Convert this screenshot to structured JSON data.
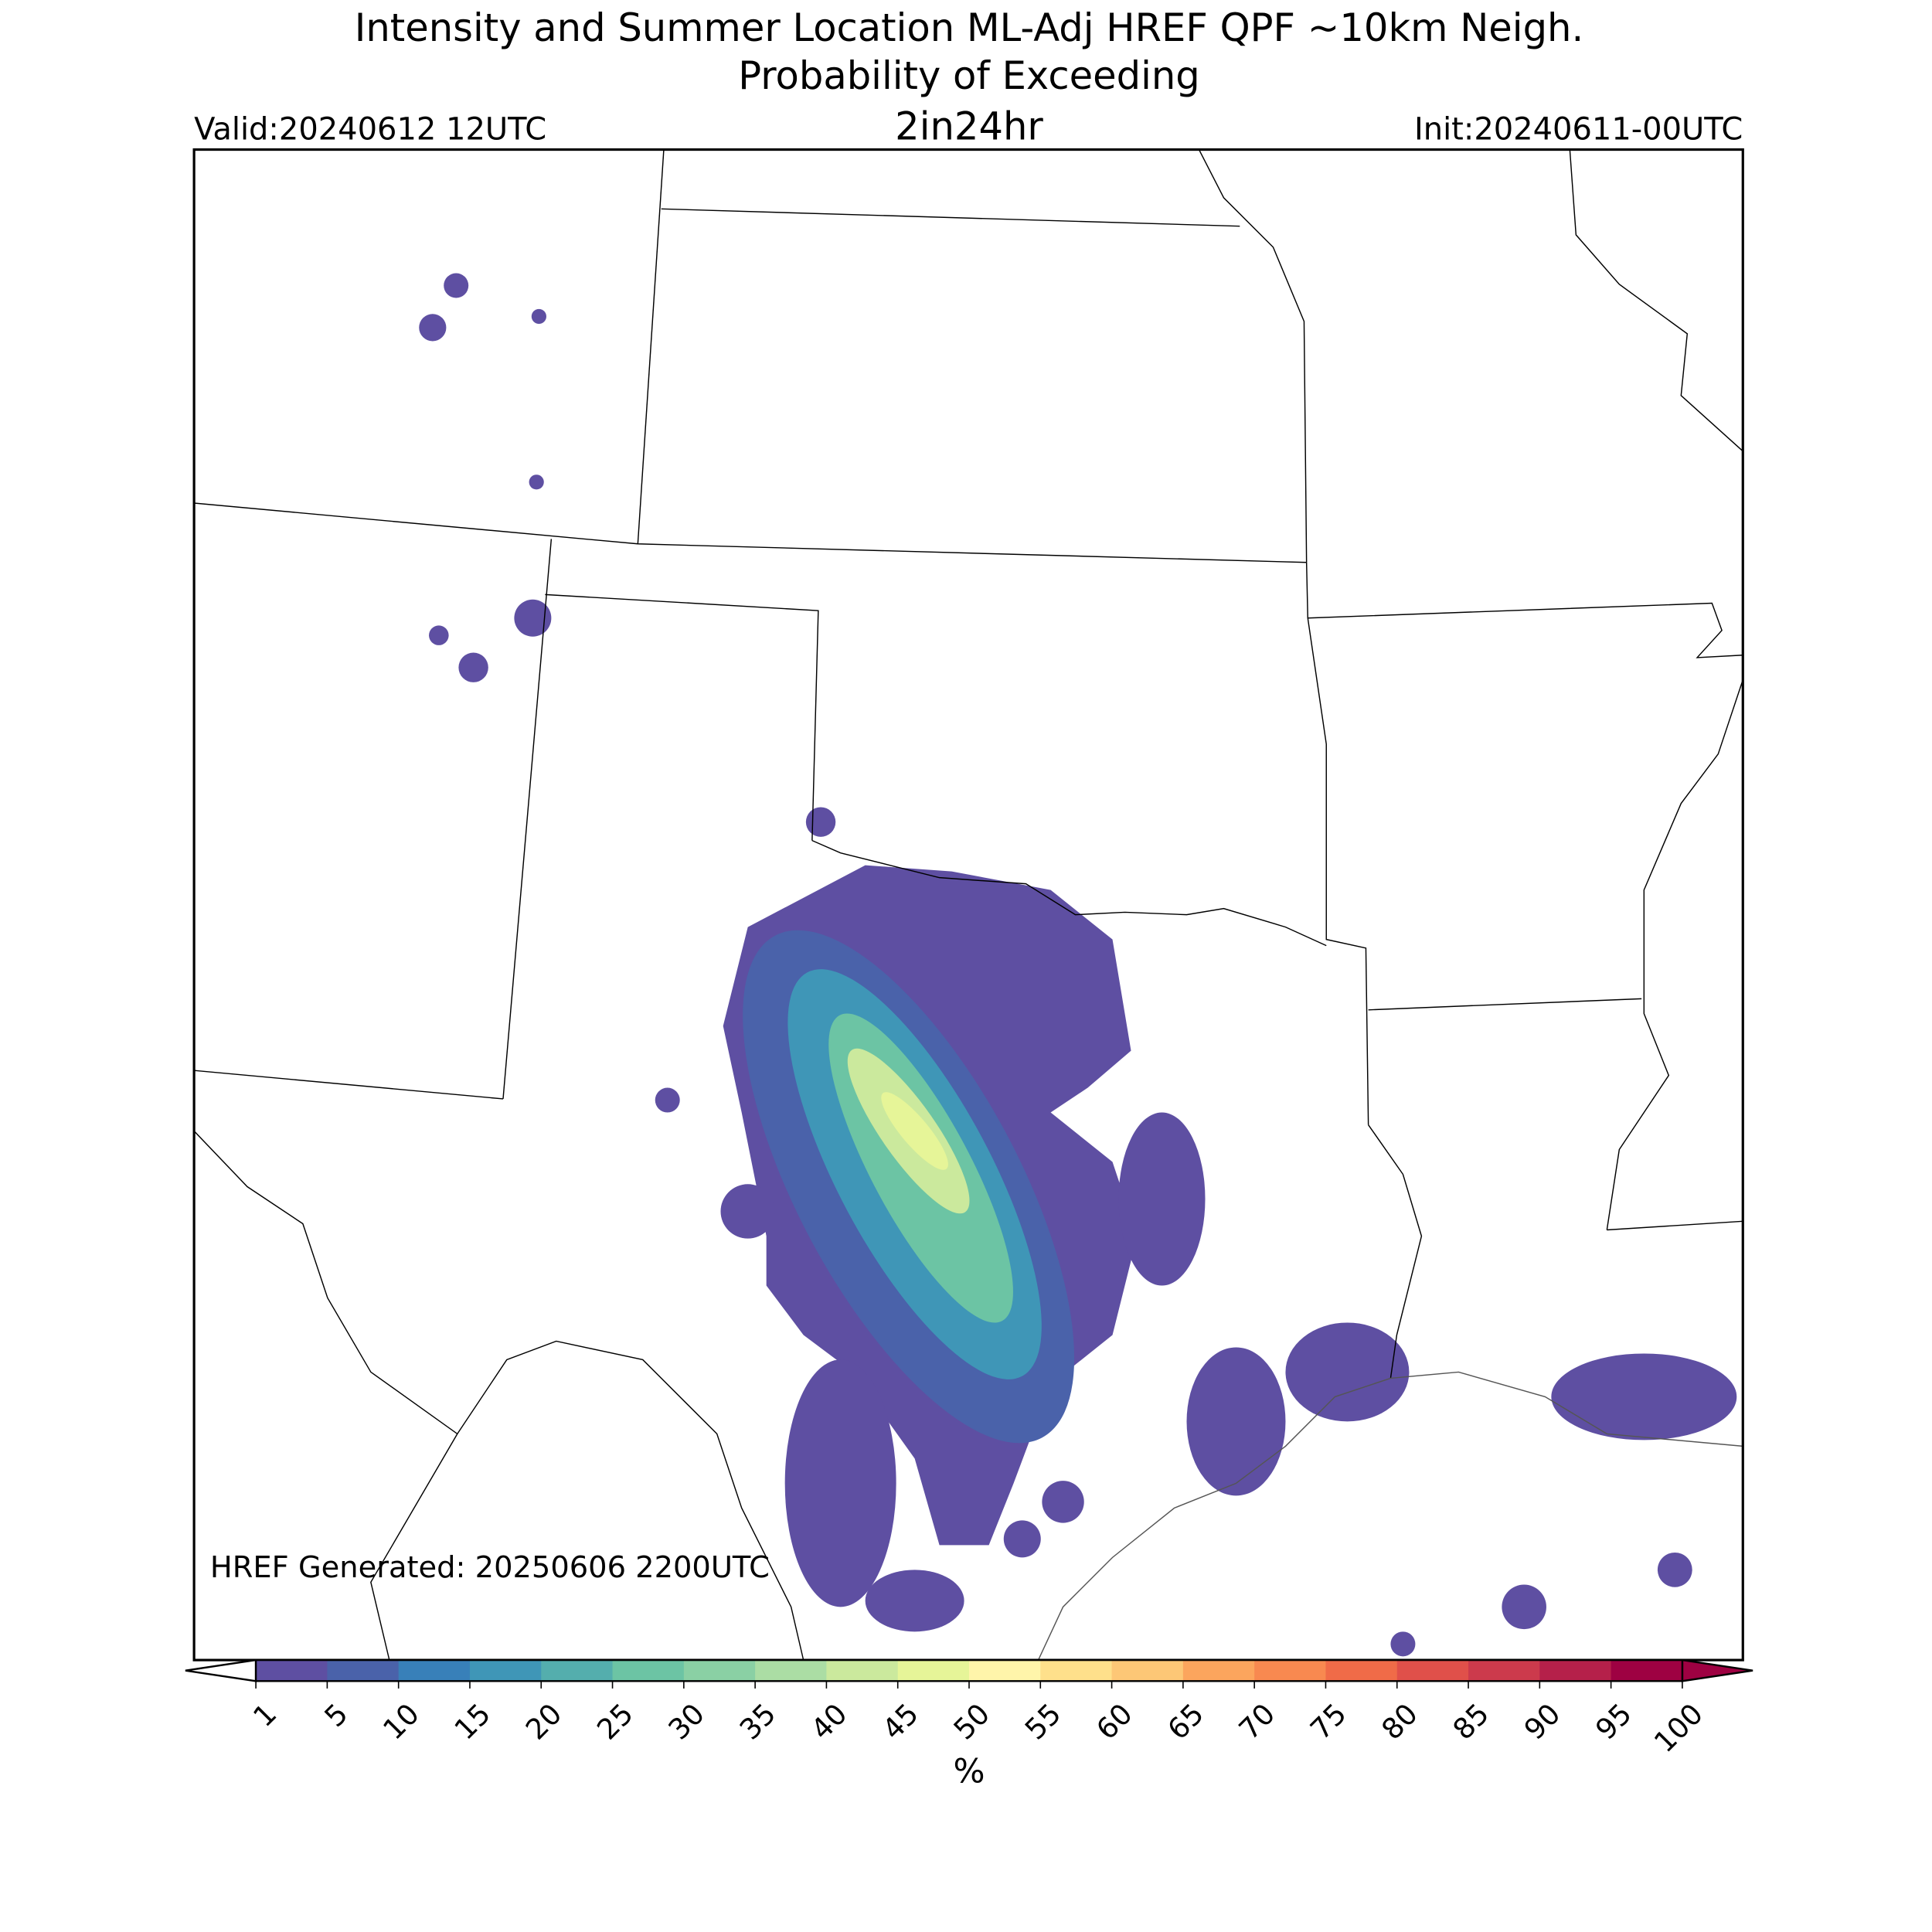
{
  "header": {
    "title": "Intensity and Summer Location ML-Adj HREF QPF ~10km Neigh.",
    "subtitle": "Probability of Exceeding",
    "threshold": "2in24hr",
    "valid": "Valid:20240612 12UTC",
    "init": "Init:20240611-00UTC"
  },
  "map": {
    "note": "HREF Generated: 20250606 2200UTC"
  },
  "colorbar": {
    "label": "%",
    "levels": [
      1,
      5,
      10,
      15,
      20,
      25,
      30,
      35,
      40,
      45,
      50,
      55,
      60,
      65,
      70,
      75,
      80,
      85,
      90,
      95,
      100
    ],
    "colors": [
      "#5e4fa2",
      "#4a62aa",
      "#3880b9",
      "#3f96b7",
      "#54aead",
      "#6cc4a4",
      "#8ad0a4",
      "#abdda4",
      "#cbe99d",
      "#e6f598",
      "#fff5aa",
      "#fee08b",
      "#fdc776",
      "#fca55d",
      "#f88950",
      "#f06b48",
      "#e0504a",
      "#cc3a4c",
      "#b5204a",
      "#9e0142"
    ]
  }
}
